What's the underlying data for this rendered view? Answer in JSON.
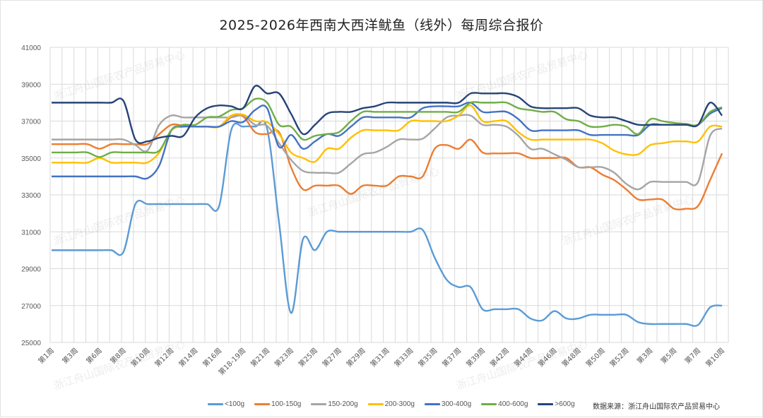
{
  "chart_data": {
    "type": "line",
    "title": "2025-2026年西南大西洋鱿鱼（线外）每周综合报价",
    "xlabel": "",
    "ylabel": "",
    "ylim": [
      25000,
      41000
    ],
    "yticks": [
      "25000",
      "27000",
      "29000",
      "31000",
      "33000",
      "35000",
      "37000",
      "39000",
      "41000"
    ],
    "x_tick_labels": [
      "第1周",
      "第3周",
      "第6周",
      "第8周",
      "第10周",
      "第12周",
      "第14周",
      "第16周",
      "第18-19周",
      "第21周",
      "第23周",
      "第25周",
      "第27周",
      "第29周",
      "第31周",
      "第33周",
      "第35周",
      "第37周",
      "第39周",
      "第42周",
      "第44周",
      "第46周",
      "第48周",
      "第50周",
      "第52周",
      "第3周",
      "第5周",
      "第7周",
      "第10周"
    ],
    "x_tick_every": 2,
    "point_count": 57,
    "grid": true,
    "legend_position": "bottom",
    "series": [
      {
        "name": "<100g",
        "color": "#5B9BD5",
        "values": [
          30000,
          30000,
          30000,
          30000,
          30000,
          30000,
          29900,
          32500,
          32500,
          32500,
          32500,
          32500,
          32500,
          32500,
          32400,
          36500,
          36700,
          36700,
          36600,
          31500,
          26600,
          30600,
          30000,
          31000,
          31000,
          31000,
          31000,
          31000,
          31000,
          31000,
          31000,
          31100,
          29600,
          28400,
          28000,
          28000,
          26800,
          26800,
          26800,
          26800,
          26300,
          26200,
          26700,
          26300,
          26300,
          26500,
          26500,
          26500,
          26500,
          26100,
          26000,
          26000,
          26000,
          26000,
          25950,
          26900,
          27000
        ]
      },
      {
        "name": "100-150g",
        "color": "#ED7D31",
        "values": [
          35750,
          35750,
          35750,
          35750,
          35500,
          35750,
          35750,
          35750,
          35750,
          36300,
          36800,
          36750,
          36700,
          36700,
          36700,
          37200,
          37250,
          36400,
          36300,
          36400,
          34500,
          33300,
          33500,
          33500,
          33500,
          33050,
          33500,
          33500,
          33500,
          34000,
          34000,
          34000,
          35500,
          35700,
          35500,
          36000,
          35300,
          35250,
          35250,
          35250,
          35000,
          35000,
          35000,
          35000,
          34500,
          34500,
          34100,
          33800,
          33300,
          32750,
          32750,
          32750,
          32250,
          32250,
          32400,
          33800,
          35250
        ]
      },
      {
        "name": "150-200g",
        "color": "#A5A5A5",
        "values": [
          36000,
          36000,
          36000,
          36000,
          36000,
          36000,
          36000,
          35700,
          35400,
          36800,
          37300,
          37200,
          37200,
          37200,
          37200,
          37200,
          37300,
          36800,
          36750,
          35800,
          34900,
          34300,
          34200,
          34200,
          34200,
          34700,
          35200,
          35300,
          35600,
          36000,
          36000,
          36050,
          36600,
          37200,
          37300,
          37300,
          36800,
          36800,
          36700,
          36200,
          35500,
          35500,
          35200,
          34900,
          34500,
          34500,
          34500,
          34200,
          33600,
          33300,
          33700,
          33700,
          33700,
          33700,
          33700,
          36200,
          36600
        ]
      },
      {
        "name": "200-300g",
        "color": "#FFC000",
        "values": [
          34750,
          34750,
          34750,
          34750,
          35000,
          34750,
          34750,
          34750,
          34750,
          35300,
          36500,
          36700,
          36700,
          36700,
          36700,
          37300,
          37350,
          37000,
          36950,
          36300,
          35300,
          35000,
          34800,
          35500,
          35500,
          36100,
          36500,
          36500,
          36500,
          36500,
          37000,
          37000,
          37000,
          37000,
          37300,
          37850,
          37000,
          37000,
          37000,
          36400,
          36000,
          36000,
          36000,
          36000,
          36000,
          36000,
          35800,
          35400,
          35200,
          35200,
          35700,
          35800,
          35900,
          35900,
          35900,
          36700,
          36700
        ]
      },
      {
        "name": "300-400g",
        "color": "#4472C4",
        "values": [
          34000,
          34000,
          34000,
          34000,
          34000,
          34000,
          34000,
          34000,
          33900,
          34600,
          36500,
          36700,
          36700,
          36700,
          36700,
          37000,
          36950,
          37600,
          37700,
          35600,
          36250,
          35500,
          35900,
          36300,
          36200,
          36700,
          37200,
          37200,
          37200,
          37200,
          37200,
          37700,
          37800,
          37800,
          37800,
          38000,
          37500,
          37500,
          37500,
          37100,
          36500,
          36500,
          36500,
          36500,
          36500,
          36250,
          36250,
          36250,
          36250,
          36250,
          36800,
          36800,
          36800,
          36800,
          36800,
          37400,
          37700
        ]
      },
      {
        "name": "400-600g",
        "color": "#70AD47",
        "values": [
          35300,
          35300,
          35300,
          35300,
          35050,
          35300,
          35300,
          35300,
          35300,
          35400,
          36500,
          36800,
          36800,
          37200,
          37250,
          37600,
          37700,
          38200,
          38000,
          36800,
          36700,
          36000,
          36200,
          36300,
          36400,
          37000,
          37500,
          37500,
          37500,
          37500,
          37500,
          37500,
          37500,
          37500,
          37500,
          38000,
          38000,
          38000,
          38000,
          37700,
          37600,
          37500,
          37500,
          37100,
          37000,
          36700,
          36700,
          36800,
          36700,
          36300,
          37100,
          37000,
          36900,
          36850,
          36800,
          37500,
          37750
        ]
      },
      {
        "name": ">600g",
        "color": "#264478",
        "values": [
          38000,
          38000,
          38000,
          38000,
          38000,
          38000,
          38100,
          36000,
          35900,
          36100,
          36200,
          36200,
          37200,
          37700,
          37850,
          37800,
          37700,
          38900,
          38500,
          38500,
          37400,
          36300,
          36800,
          37400,
          37500,
          37500,
          37700,
          37800,
          38000,
          38000,
          38000,
          38000,
          38000,
          38000,
          38000,
          38500,
          38500,
          38500,
          38500,
          38300,
          37800,
          37700,
          37700,
          37700,
          37700,
          37300,
          37200,
          37200,
          37000,
          36800,
          36800,
          36800,
          36800,
          36800,
          36800,
          38000,
          37300
        ]
      }
    ]
  },
  "source": "数据来源：浙江舟山国际农产品贸易中心",
  "watermark": "浙江舟山国际农产品贸易中心"
}
